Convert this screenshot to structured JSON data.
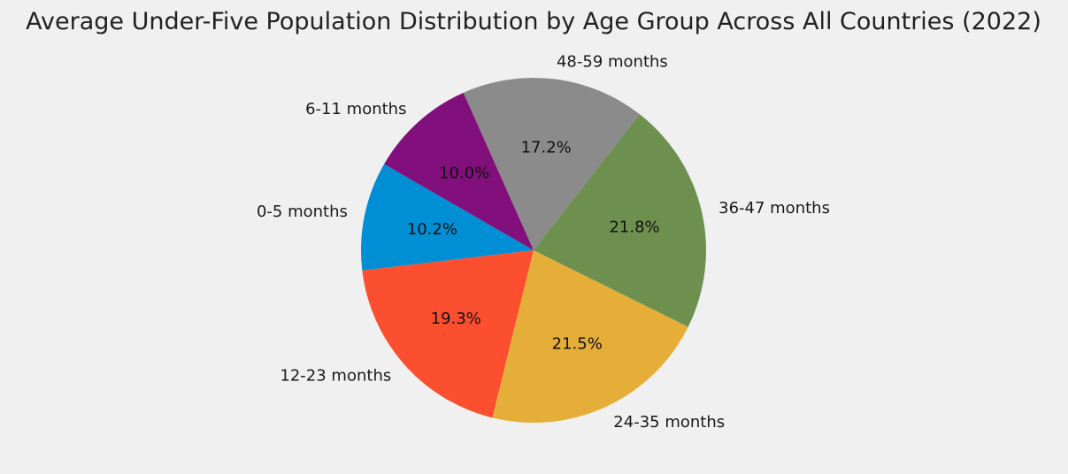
{
  "chart_data": {
    "type": "pie",
    "title": "Average Under-Five Population Distribution by Age Group Across All Countries (2022)",
    "categories": [
      "0-5 months",
      "12-23 months",
      "24-35 months",
      "36-47 months",
      "48-59 months",
      "6-11 months"
    ],
    "values": [
      10.2,
      19.3,
      21.5,
      21.8,
      17.2,
      10.0
    ],
    "value_labels": [
      "10.2%",
      "19.3%",
      "21.5%",
      "21.8%",
      "17.2%",
      "10.0%"
    ],
    "colors": [
      "#008fd5",
      "#fc4f30",
      "#e5ae38",
      "#6d904f",
      "#8b8b8b",
      "#810f7c"
    ],
    "start_angle_deg": 150,
    "direction": "counterclockwise",
    "legend": "none",
    "grid": false
  }
}
